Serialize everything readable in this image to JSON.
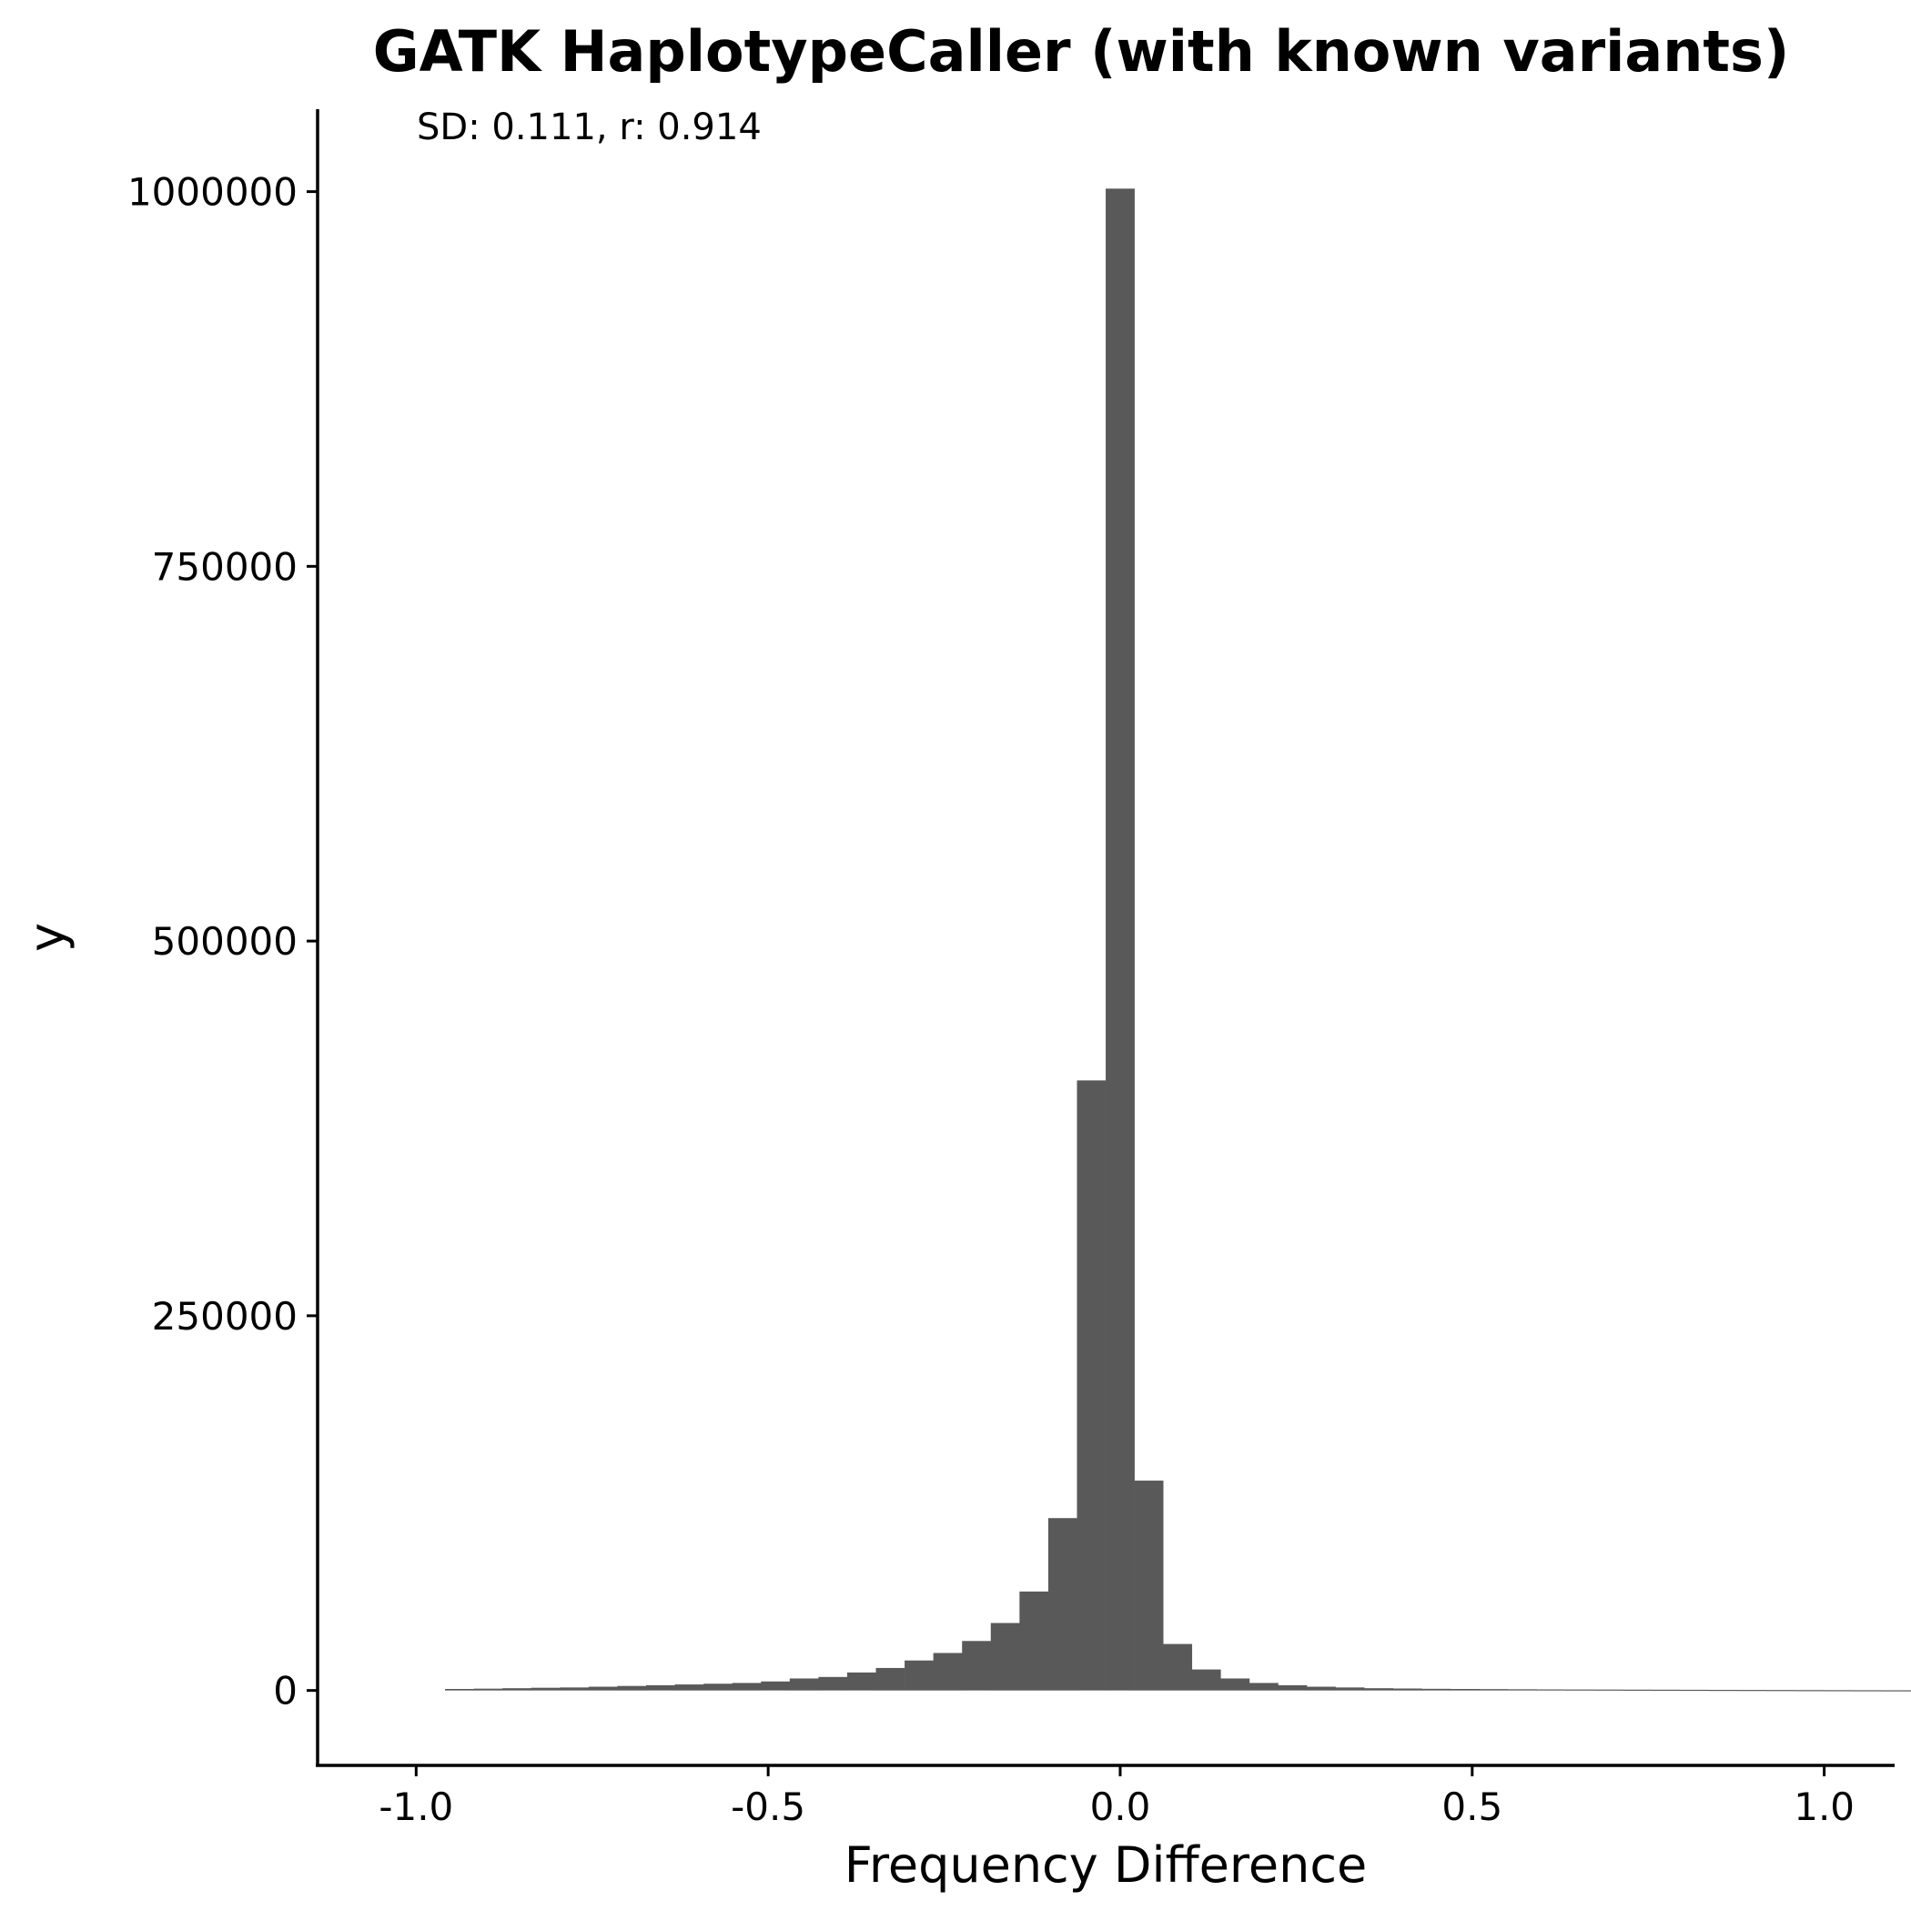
{
  "chart_data": {
    "type": "bar",
    "title": "GATK HaplotypeCaller (with known variants)",
    "annotation": "SD: 0.111, r: 0.914",
    "xlabel": "Frequency Difference",
    "ylabel": "y",
    "xlim": [
      -1.14,
      1.1
    ],
    "ylim": [
      -50000,
      1055000
    ],
    "xticks": [
      -1.0,
      -0.5,
      0.0,
      0.5,
      1.0
    ],
    "xtick_labels": [
      "-1.0",
      "-0.5",
      "0.0",
      "0.5",
      "1.0"
    ],
    "yticks": [
      0,
      250000,
      500000,
      750000,
      1000000
    ],
    "ytick_labels": [
      "0",
      "250000",
      "500000",
      "750000",
      "1000000"
    ],
    "bin_width": 0.0408,
    "bin_start": -0.959,
    "values": [
      1000,
      1200,
      1500,
      1800,
      2000,
      2500,
      3000,
      3500,
      4000,
      4500,
      5000,
      6000,
      8000,
      9000,
      12000,
      15000,
      20000,
      25000,
      33000,
      45000,
      66000,
      115000,
      407000,
      1002000,
      140000,
      31000,
      14000,
      8000,
      5000,
      3500,
      2500,
      2000,
      1500,
      1300,
      1100,
      1000,
      900,
      800,
      700,
      650,
      600,
      550,
      500,
      450,
      400,
      350,
      300,
      250,
      200,
      150,
      100,
      100,
      100,
      100,
      100
    ],
    "grid": false,
    "legend": "none",
    "bar_color": "#595959"
  }
}
